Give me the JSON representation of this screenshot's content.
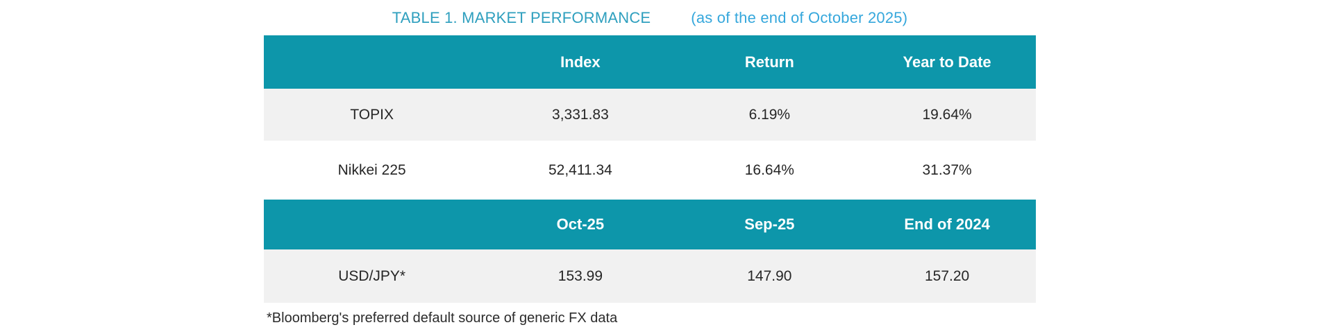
{
  "title": {
    "main": "TABLE 1. MARKET PERFORMANCE",
    "sub": "(as of the end of October 2025)"
  },
  "colors": {
    "header_bg": "#0d96aa",
    "row_alt_bg": "#f1f1f1",
    "header_text": "#ffffff",
    "body_text": "#262626",
    "title_main": "#2e9fbe",
    "title_sub": "#35a7dc"
  },
  "index_table": {
    "headers": {
      "label": "",
      "col1": "Index",
      "col2": "Return",
      "col3": "Year to Date"
    },
    "rows": [
      {
        "label": "TOPIX",
        "values": [
          "3,331.83",
          "6.19%",
          "19.64%"
        ]
      },
      {
        "label": "Nikkei 225",
        "values": [
          "52,411.34",
          "16.64%",
          "31.37%"
        ]
      }
    ]
  },
  "fx_table": {
    "headers": {
      "label": "",
      "col1": "Oct-25",
      "col2": "Sep-25",
      "col3": "End of 2024"
    },
    "rows": [
      {
        "label": "USD/JPY*",
        "values": [
          "153.99",
          "147.90",
          "157.20"
        ]
      }
    ]
  },
  "footnote": "*Bloomberg's preferred default source of generic FX data",
  "chart_data": {
    "type": "table",
    "title": "TABLE 1. MARKET PERFORMANCE (as of the end of October 2025)",
    "tables": [
      {
        "columns": [
          "",
          "Index",
          "Return",
          "Year to Date"
        ],
        "rows": [
          [
            "TOPIX",
            "3,331.83",
            "6.19%",
            "19.64%"
          ],
          [
            "Nikkei 225",
            "52,411.34",
            "16.64%",
            "31.37%"
          ]
        ]
      },
      {
        "columns": [
          "",
          "Oct-25",
          "Sep-25",
          "End of 2024"
        ],
        "rows": [
          [
            "USD/JPY*",
            "153.99",
            "147.90",
            "157.20"
          ]
        ]
      }
    ],
    "footnote": "*Bloomberg's preferred default source of generic FX data"
  }
}
